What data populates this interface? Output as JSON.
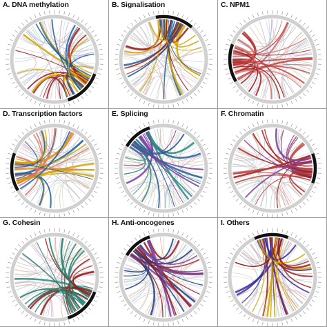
{
  "panels": [
    {
      "id": "A",
      "title": "A. DNA methylation",
      "accent": "#9b1c1c",
      "accent2": "#d4a500",
      "accent3": "#1f5f99",
      "highlight": "arc-bottom-right"
    },
    {
      "id": "B",
      "title": "B. Signalisation",
      "accent": "#1f5f99",
      "accent2": "#d4a500",
      "accent3": "#9b1c1c",
      "highlight": "arc-top-right"
    },
    {
      "id": "C",
      "title": "C. NPM1",
      "accent": "#9b1c1c",
      "accent2": "#c04040",
      "accent3": "#d07070",
      "highlight": "arc-left"
    },
    {
      "id": "D",
      "title": "D. Transcription factors",
      "accent": "#e07060",
      "accent2": "#d4a500",
      "accent3": "#1f5f99",
      "highlight": "arc-left"
    },
    {
      "id": "E",
      "title": "E. Splicing",
      "accent": "#2a8a7a",
      "accent2": "#7a3f9e",
      "accent3": "#1f5f99",
      "highlight": "arc-top-left"
    },
    {
      "id": "F",
      "title": "F. Chromatin",
      "accent": "#9b1c1c",
      "accent2": "#c04040",
      "accent3": "#7a3f9e",
      "highlight": "arc-right"
    },
    {
      "id": "G",
      "title": "G. Cohesin",
      "accent": "#1f7a66",
      "accent2": "#9b1c1c",
      "accent3": "#2a8a7a",
      "highlight": "arc-bottom-right"
    },
    {
      "id": "H",
      "title": "H. Anti-oncogenes",
      "accent": "#1f3f80",
      "accent2": "#9b1c1c",
      "accent3": "#7a3f9e",
      "highlight": "arc-top-left"
    },
    {
      "id": "I",
      "title": "I. Others",
      "accent": "#3a2a9e",
      "accent2": "#d4a500",
      "accent3": "#9b1c1c",
      "highlight": "arc-top"
    }
  ]
}
